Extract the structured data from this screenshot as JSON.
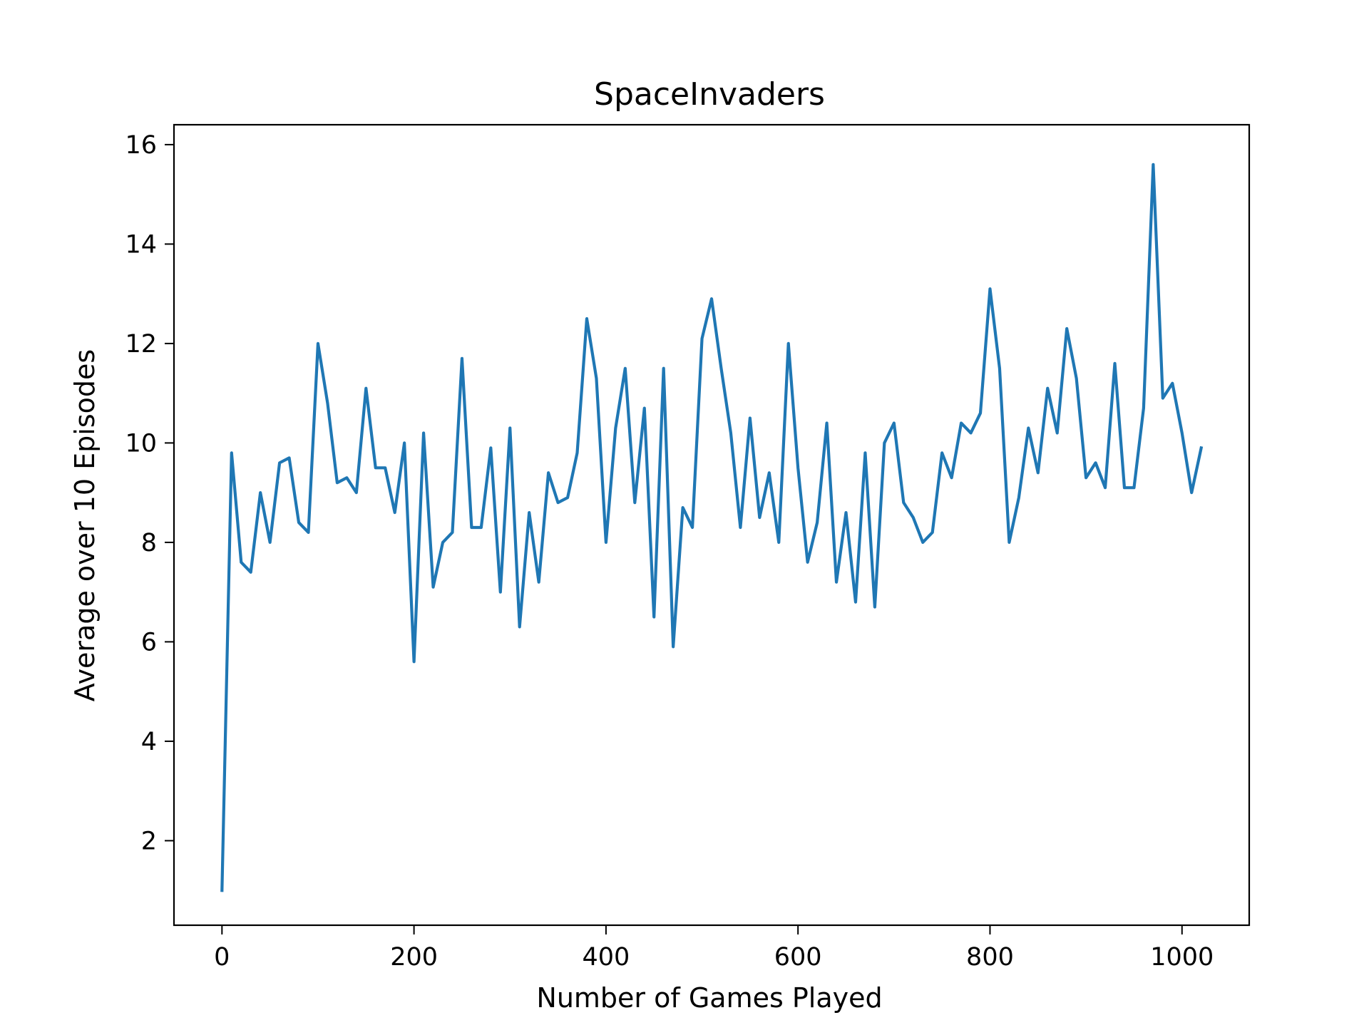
{
  "chart_data": {
    "type": "line",
    "title": "SpaceInvaders",
    "xlabel": "Number of Games Played",
    "ylabel": "Average over 10 Episodes",
    "xlim": [
      -50,
      1070
    ],
    "ylim": [
      0.3,
      16.4
    ],
    "xticks": [
      0,
      200,
      400,
      600,
      800,
      1000
    ],
    "yticks": [
      2,
      4,
      6,
      8,
      10,
      12,
      14,
      16
    ],
    "grid": false,
    "line_color": "#1f77b4",
    "series": [
      {
        "x": [
          0,
          10,
          20,
          30,
          40,
          50,
          60,
          70,
          80,
          90,
          100,
          110,
          120,
          130,
          140,
          150,
          160,
          170,
          180,
          190,
          200,
          210,
          220,
          230,
          240,
          250,
          260,
          270,
          280,
          290,
          300,
          310,
          320,
          330,
          340,
          350,
          360,
          370,
          380,
          390,
          400,
          410,
          420,
          430,
          440,
          450,
          460,
          470,
          480,
          490,
          500,
          510,
          520,
          530,
          540,
          550,
          560,
          570,
          580,
          590,
          600,
          610,
          620,
          630,
          640,
          650,
          660,
          670,
          680,
          690,
          700,
          710,
          720,
          730,
          740,
          750,
          760,
          770,
          780,
          790,
          800,
          810,
          820,
          830,
          840,
          850,
          860,
          870,
          880,
          890,
          900,
          910,
          920,
          930,
          940,
          950,
          960,
          970,
          980,
          990,
          1000,
          1010,
          1020
        ],
        "y": [
          1.0,
          9.8,
          7.6,
          7.4,
          9.0,
          8.0,
          9.6,
          9.7,
          8.4,
          8.2,
          12.0,
          10.8,
          9.2,
          9.3,
          9.0,
          11.1,
          9.5,
          9.5,
          8.6,
          10.0,
          5.6,
          10.2,
          7.1,
          8.0,
          8.2,
          11.7,
          8.3,
          8.3,
          9.9,
          7.0,
          10.3,
          6.3,
          8.6,
          7.2,
          9.4,
          8.8,
          8.9,
          9.8,
          12.5,
          11.3,
          8.0,
          10.3,
          11.5,
          8.8,
          10.7,
          6.5,
          11.5,
          5.9,
          8.7,
          8.3,
          12.1,
          12.9,
          11.5,
          10.2,
          8.3,
          10.5,
          8.5,
          9.4,
          8.0,
          12.0,
          9.5,
          7.6,
          8.4,
          10.4,
          7.2,
          8.6,
          6.8,
          9.8,
          6.7,
          10.0,
          10.4,
          8.8,
          8.5,
          8.0,
          8.2,
          9.8,
          9.3,
          10.4,
          10.2,
          10.6,
          13.1,
          11.5,
          8.0,
          8.9,
          10.3,
          9.4,
          11.1,
          10.2,
          12.3,
          11.3,
          9.3,
          9.6,
          9.1,
          11.6,
          9.1,
          9.1,
          10.7,
          15.6,
          10.9,
          11.2,
          10.2,
          9.0,
          9.9
        ]
      }
    ]
  }
}
